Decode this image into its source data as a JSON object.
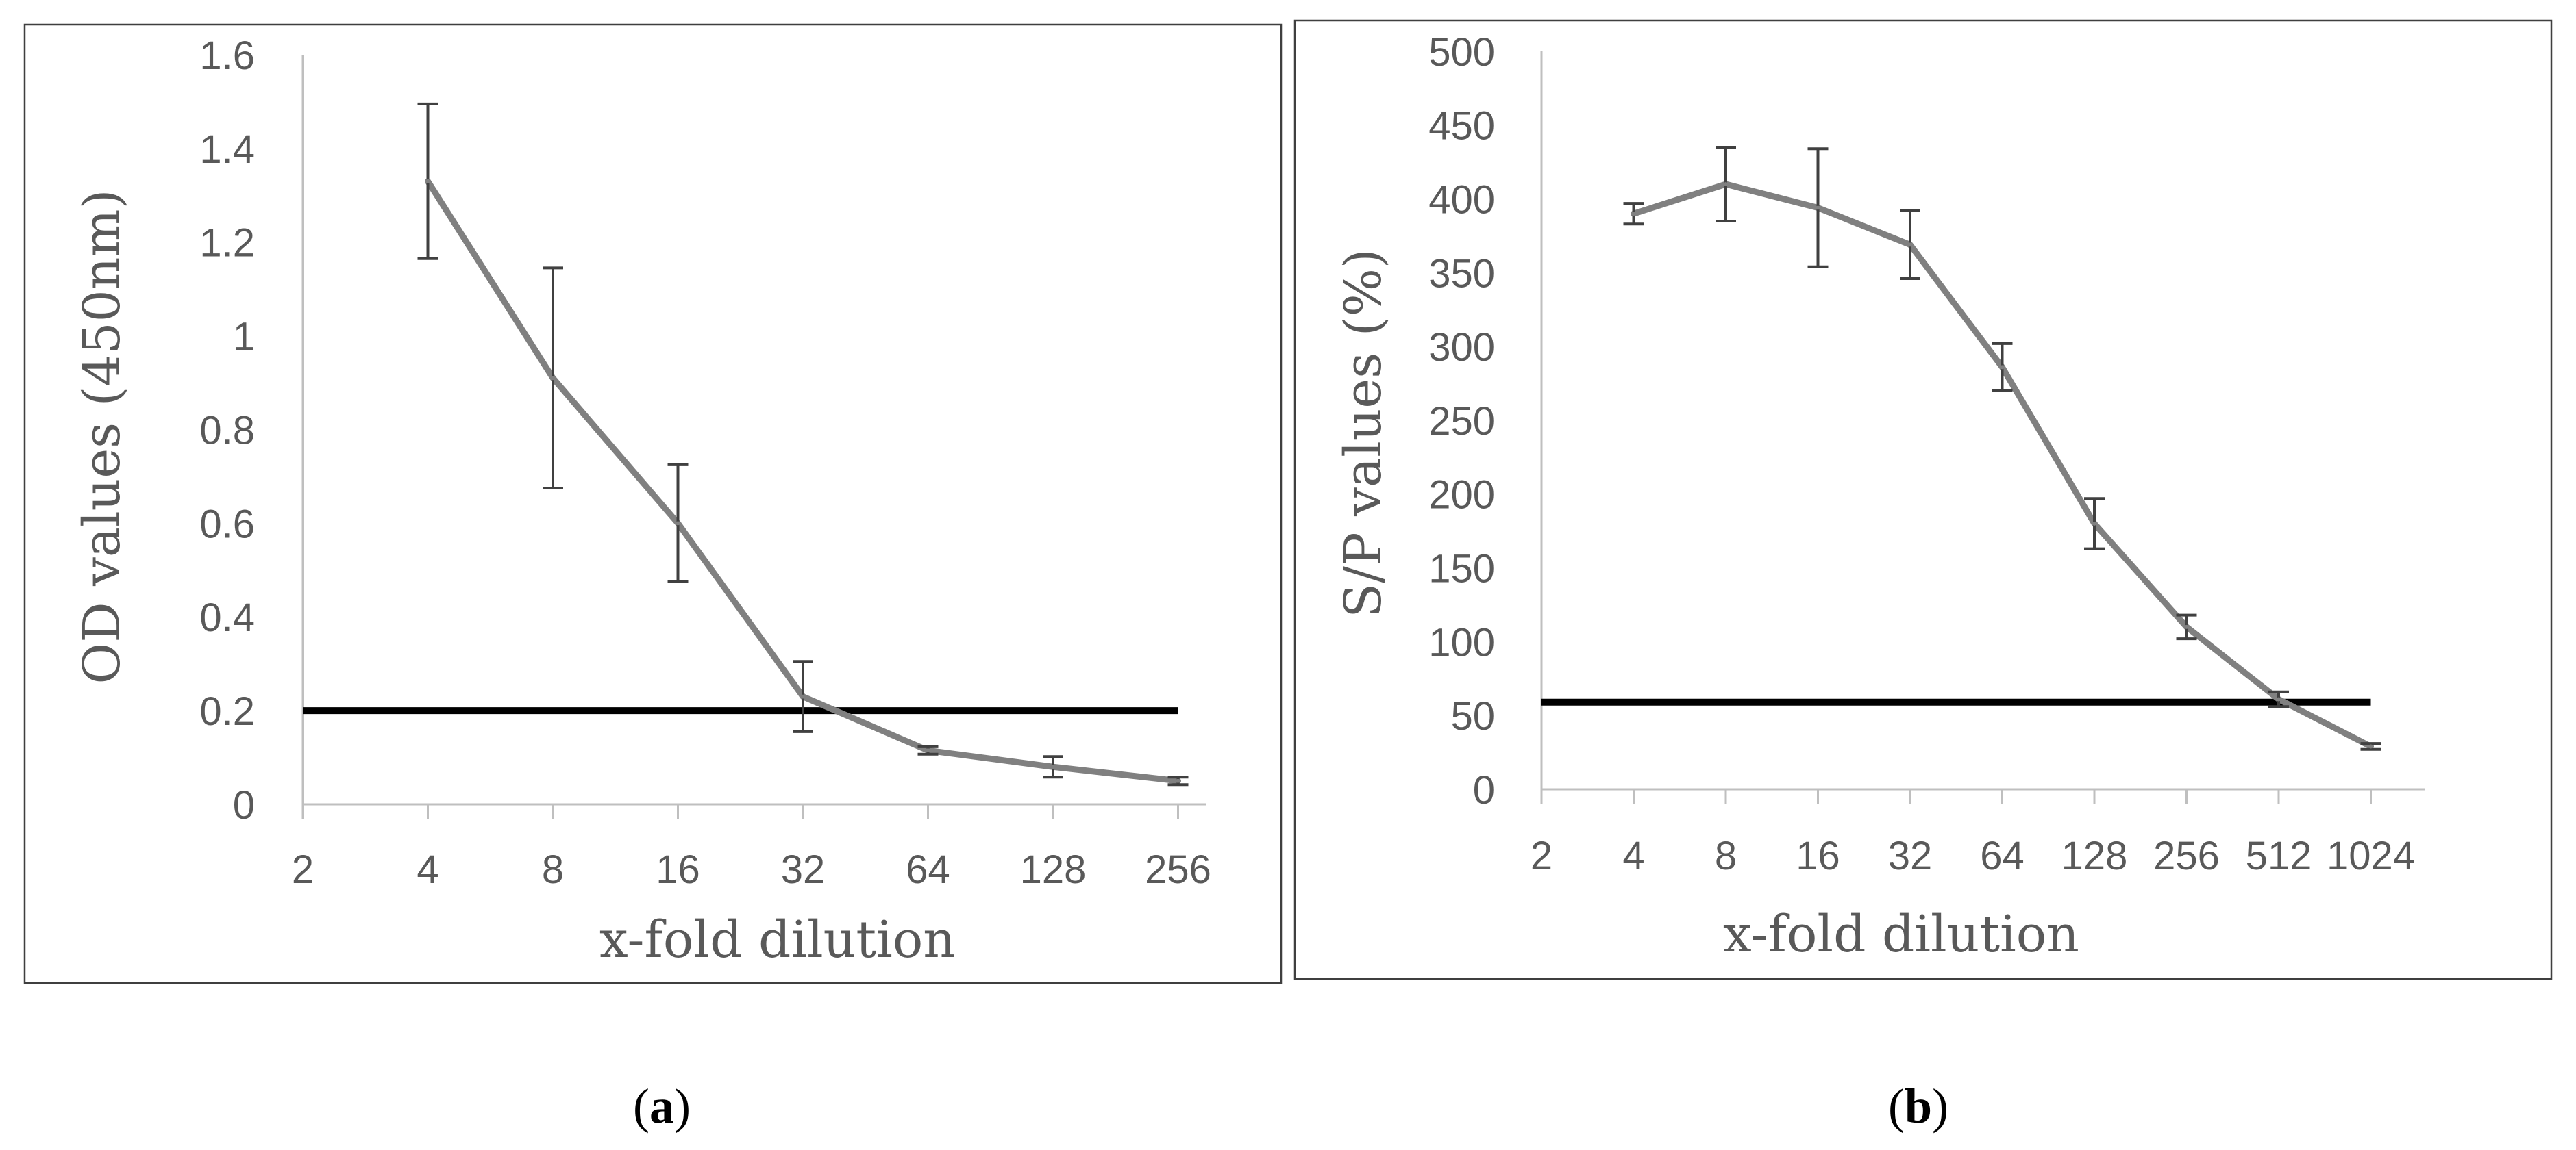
{
  "colors": {
    "series_line": "#808080",
    "error_bar": "#404040",
    "threshold_line": "#000000",
    "axis": "#bfbfbf",
    "frame": "#3f3f3f",
    "text": "#595959"
  },
  "chart_data": [
    {
      "panel": "a",
      "type": "line",
      "title": "",
      "xlabel": "x-fold dilution",
      "ylabel": "OD values (450nm)",
      "x_ticks": [
        "2",
        "4",
        "8",
        "16",
        "32",
        "64",
        "128",
        "256"
      ],
      "y_ticks": [
        "0",
        "0.2",
        "0.4",
        "0.6",
        "0.8",
        "1",
        "1.2",
        "1.4",
        "1.6"
      ],
      "ylim": [
        0,
        1.6
      ],
      "grid": false,
      "series": [
        {
          "x": [
            "4",
            "8",
            "16",
            "32",
            "64",
            "128",
            "256"
          ],
          "values": [
            1.33,
            0.91,
            0.6,
            0.23,
            0.115,
            0.08,
            0.05
          ],
          "error": [
            0.165,
            0.235,
            0.125,
            0.075,
            0.008,
            0.022,
            0.008
          ]
        }
      ],
      "threshold": {
        "value": 0.2,
        "from": "2",
        "to": "256"
      }
    },
    {
      "panel": "b",
      "type": "line",
      "title": "",
      "xlabel": "x-fold dilution",
      "ylabel": "S/P values (%)",
      "x_ticks": [
        "2",
        "4",
        "8",
        "16",
        "32",
        "64",
        "128",
        "256",
        "512",
        "1024"
      ],
      "y_ticks": [
        "0",
        "50",
        "100",
        "150",
        "200",
        "250",
        "300",
        "350",
        "400",
        "450",
        "500"
      ],
      "ylim": [
        0,
        500
      ],
      "grid": false,
      "series": [
        {
          "x": [
            "4",
            "8",
            "16",
            "32",
            "64",
            "128",
            "256",
            "512",
            "1024"
          ],
          "values": [
            390,
            410,
            394,
            369,
            286,
            180,
            110,
            61,
            29
          ],
          "error": [
            7,
            25,
            40,
            23,
            16,
            17,
            8,
            5,
            2
          ]
        }
      ],
      "threshold": {
        "value": 59,
        "from": "2",
        "to": "1024"
      }
    }
  ],
  "panel_labels": [
    {
      "open": "(",
      "letter": "a",
      "close": ")"
    },
    {
      "open": "(",
      "letter": "b",
      "close": ")"
    }
  ]
}
